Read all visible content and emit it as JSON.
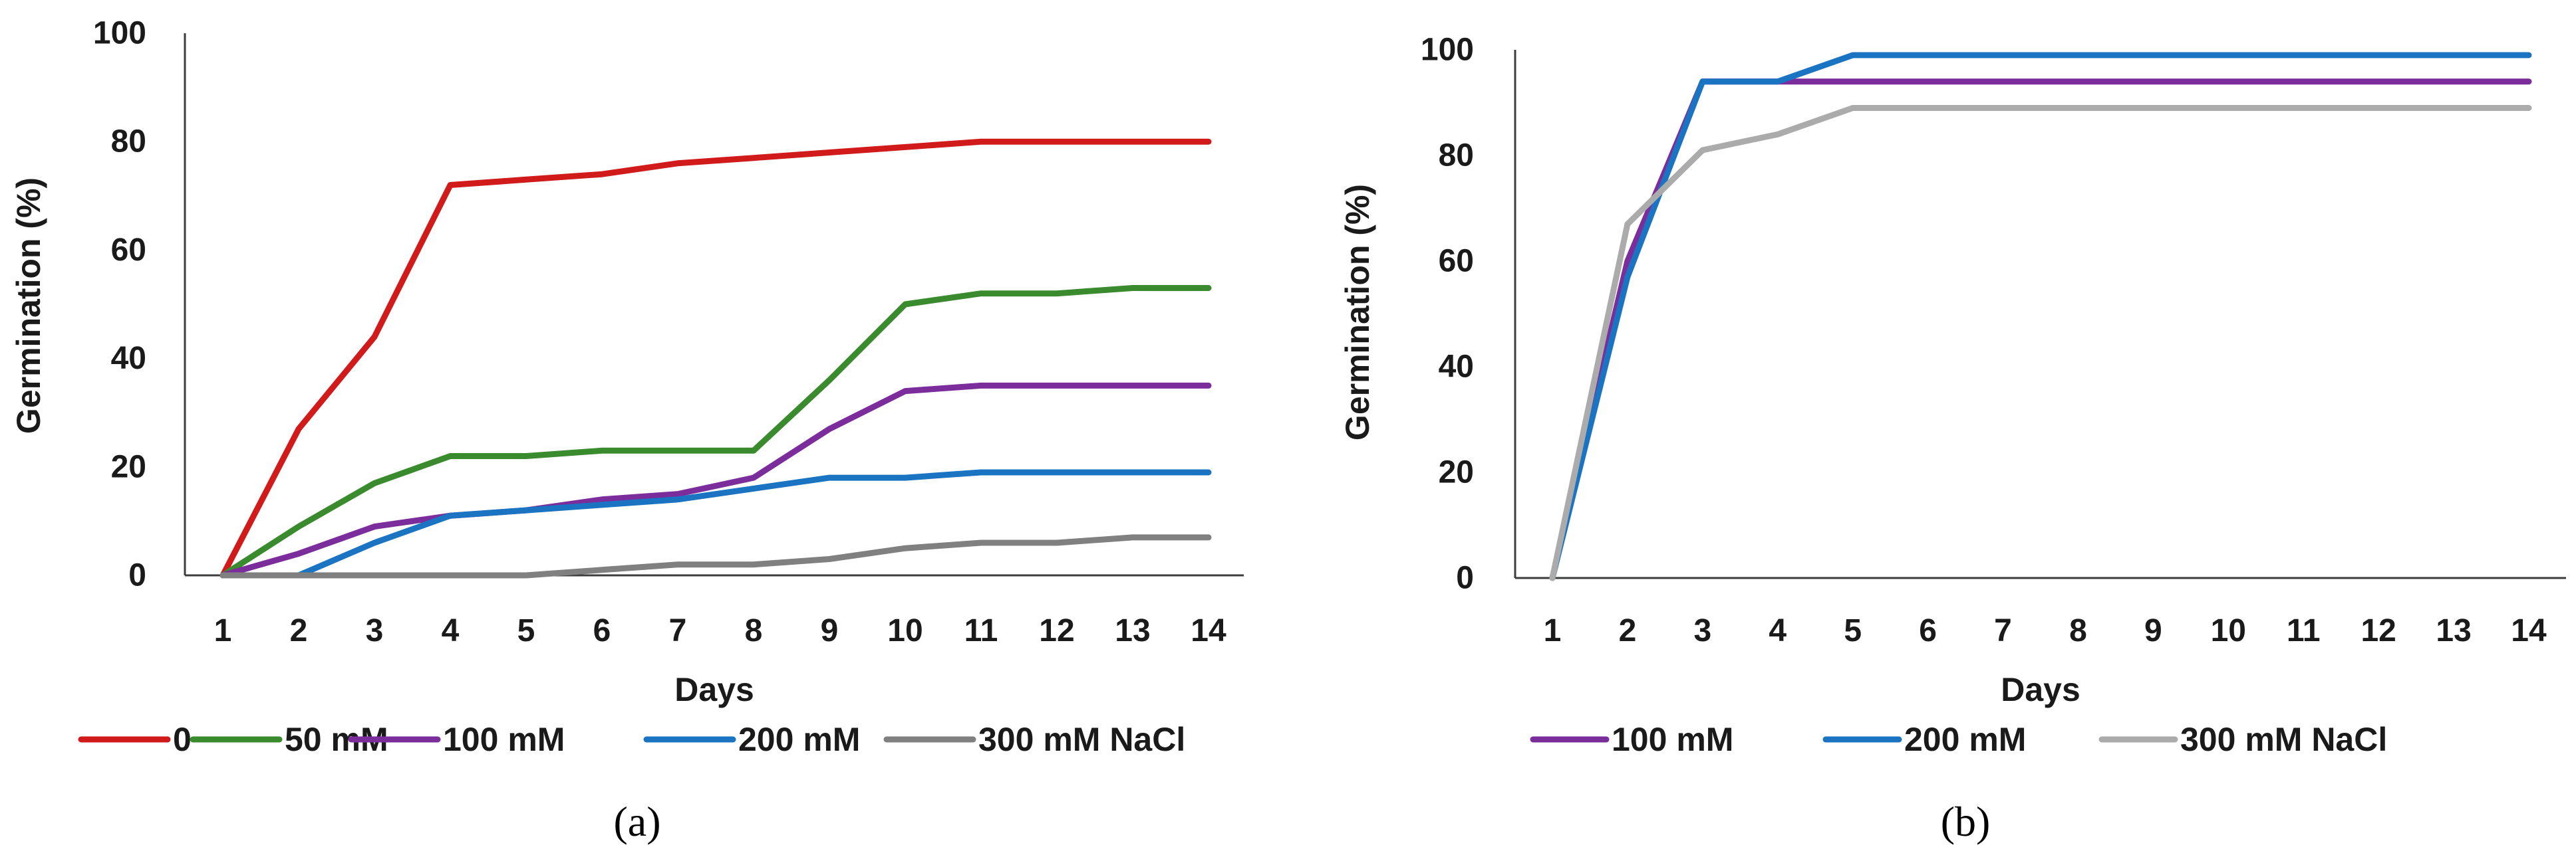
{
  "chart_data": [
    {
      "type": "line",
      "panel_label": "(a)",
      "xlabel": "Days",
      "ylabel": "Germination (%)",
      "x": [
        1,
        2,
        3,
        4,
        5,
        6,
        7,
        8,
        9,
        10,
        11,
        12,
        13,
        14
      ],
      "xticks": [
        "1",
        "2",
        "3",
        "4",
        "5",
        "6",
        "7",
        "8",
        "9",
        "10",
        "11",
        "12",
        "13",
        "14"
      ],
      "yticks": [
        "0",
        "20",
        "40",
        "60",
        "80",
        "100"
      ],
      "ylim": [
        0,
        100
      ],
      "grid": false,
      "legend_position": "bottom",
      "series": [
        {
          "name": "0",
          "color": "#d11b1b",
          "values": [
            0,
            27,
            44,
            72,
            73,
            74,
            76,
            77,
            78,
            79,
            80,
            80,
            80,
            80
          ]
        },
        {
          "name": "50 mM",
          "color": "#3a8a2e",
          "values": [
            0,
            9,
            17,
            22,
            22,
            23,
            23,
            23,
            36,
            50,
            52,
            52,
            53,
            53
          ]
        },
        {
          "name": "100 mM",
          "color": "#7b2d9c",
          "values": [
            0,
            4,
            9,
            11,
            12,
            14,
            15,
            18,
            27,
            34,
            35,
            35,
            35,
            35
          ]
        },
        {
          "name": "200 mM",
          "color": "#1b74c2",
          "values": [
            0,
            0,
            6,
            11,
            12,
            13,
            14,
            16,
            18,
            18,
            19,
            19,
            19,
            19
          ]
        },
        {
          "name": "300 mM NaCl",
          "color": "#808080",
          "values": [
            0,
            0,
            0,
            0,
            0,
            1,
            2,
            2,
            3,
            5,
            6,
            6,
            7,
            7
          ]
        }
      ]
    },
    {
      "type": "line",
      "panel_label": "(b)",
      "xlabel": "Days",
      "ylabel": "Germination (%)",
      "x": [
        1,
        2,
        3,
        4,
        5,
        6,
        7,
        8,
        9,
        10,
        11,
        12,
        13,
        14
      ],
      "xticks": [
        "1",
        "2",
        "3",
        "4",
        "5",
        "6",
        "7",
        "8",
        "9",
        "10",
        "11",
        "12",
        "13",
        "14"
      ],
      "yticks": [
        "0",
        "20",
        "40",
        "60",
        "80",
        "100"
      ],
      "ylim": [
        0,
        100
      ],
      "grid": false,
      "legend_position": "bottom",
      "series": [
        {
          "name": "100  mM",
          "color": "#7b2d9c",
          "values": [
            0,
            60,
            94,
            94,
            94,
            94,
            94,
            94,
            94,
            94,
            94,
            94,
            94,
            94
          ]
        },
        {
          "name": "200 mM",
          "color": "#1b74c2",
          "values": [
            0,
            57,
            94,
            94,
            99,
            99,
            99,
            99,
            99,
            99,
            99,
            99,
            99,
            99
          ]
        },
        {
          "name": "300 mM NaCl",
          "color": "#ababab",
          "values": [
            0,
            67,
            81,
            84,
            89,
            89,
            89,
            89,
            89,
            89,
            89,
            89,
            89,
            89
          ]
        }
      ]
    }
  ]
}
